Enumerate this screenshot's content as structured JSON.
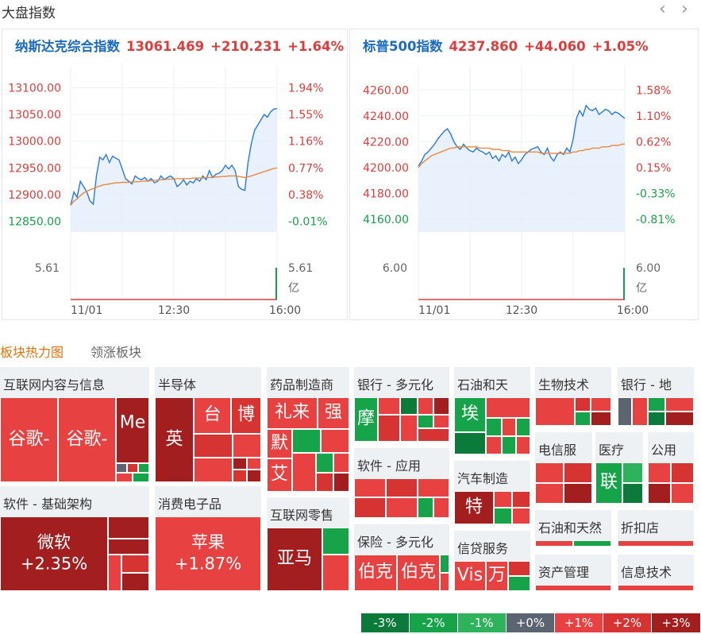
{
  "header": {
    "title": "大盘指数",
    "prev_icon": "chevron-left-icon",
    "next_icon": "chevron-right-icon"
  },
  "nasdaq": {
    "name": "纳斯达克综合指数",
    "price": "13061.469",
    "change": "+210.231",
    "pct": "+1.64%",
    "left_ticks": [
      "13100.00",
      "13050.00",
      "13000.00",
      "12950.00",
      "12900.00",
      "12850.00"
    ],
    "right_ticks": [
      "1.94%",
      "1.55%",
      "1.16%",
      "0.77%",
      "0.38%",
      "-0.01%"
    ],
    "vol_left": "5.61",
    "vol_right": "5.61",
    "vol_unit": "亿",
    "x_ticks": [
      "11/01",
      "12:30",
      "16:00"
    ]
  },
  "sp500": {
    "name": "标普500指数",
    "price": "4237.860",
    "change": "+44.060",
    "pct": "+1.05%",
    "left_ticks": [
      "4260.00",
      "4240.00",
      "4220.00",
      "4200.00",
      "4180.00",
      "4160.00"
    ],
    "right_ticks": [
      "1.58%",
      "1.10%",
      "0.62%",
      "0.15%",
      "-0.33%",
      "-0.81%"
    ],
    "vol_left": "6.00",
    "vol_right": "6.00",
    "vol_unit": "亿",
    "x_ticks": [
      "11/01",
      "12:30",
      "16:00"
    ]
  },
  "chart_data": [
    {
      "type": "line",
      "ylim": [
        12830,
        13120
      ],
      "series": [
        {
          "values": [
            12880,
            12905,
            12895,
            12925,
            12915,
            12905,
            12888,
            12882,
            12935,
            12970,
            12965,
            12975,
            12960,
            12972,
            12968,
            12965,
            12948,
            12930,
            12925,
            12920,
            12935,
            12930,
            12928,
            12932,
            12925,
            12930,
            12922,
            12925,
            12935,
            12928,
            12932,
            12935,
            12930,
            12915,
            12920,
            12928,
            12918,
            12925,
            12922,
            12930,
            12925,
            12935,
            12928,
            12945,
            12932,
            12938,
            12940,
            12945,
            12955,
            12948,
            12955,
            12945,
            12915,
            12910,
            12908,
            12960,
            12995,
            13020,
            13030,
            13040,
            13050,
            13045,
            13055,
            13060,
            13061
          ]
        },
        {
          "values": [
            12880,
            12888,
            12892,
            12898,
            12903,
            12906,
            12909,
            12911,
            12914,
            12916,
            12918,
            12919,
            12920,
            12921,
            12922,
            12922,
            12923,
            12923,
            12923,
            12924,
            12924,
            12924,
            12925,
            12925,
            12926,
            12926,
            12927,
            12927,
            12928,
            12928,
            12929,
            12929,
            12929,
            12930,
            12930,
            12930,
            12930,
            12930,
            12931,
            12931,
            12931,
            12931,
            12932,
            12932,
            12932,
            12933,
            12933,
            12934,
            12934,
            12935,
            12935,
            12935,
            12934,
            12933,
            12932,
            12933,
            12935,
            12937,
            12939,
            12941,
            12943,
            12945,
            12947,
            12949,
            12950
          ]
        }
      ]
    },
    {
      "type": "line",
      "ylim": [
        4150,
        4270
      ],
      "series": [
        {
          "values": [
            4201,
            4205,
            4210,
            4212,
            4215,
            4218,
            4222,
            4225,
            4228,
            4230,
            4226,
            4220,
            4216,
            4214,
            4218,
            4215,
            4213,
            4212,
            4215,
            4213,
            4212,
            4210,
            4212,
            4207,
            4209,
            4205,
            4210,
            4208,
            4212,
            4205,
            4208,
            4203,
            4206,
            4210,
            4212,
            4214,
            4215,
            4216,
            4212,
            4210,
            4215,
            4208,
            4205,
            4210,
            4212,
            4210,
            4215,
            4212,
            4222,
            4238,
            4244,
            4240,
            4248,
            4245,
            4244,
            4246,
            4241,
            4243,
            4245,
            4244,
            4241,
            4243,
            4242,
            4240,
            4238
          ]
        },
        {
          "values": [
            4200,
            4203,
            4205,
            4207,
            4209,
            4210,
            4211,
            4212,
            4213,
            4214,
            4215,
            4215,
            4216,
            4216,
            4216,
            4216,
            4216,
            4216,
            4216,
            4215,
            4215,
            4215,
            4215,
            4214,
            4214,
            4214,
            4213,
            4213,
            4213,
            4212,
            4212,
            4212,
            4212,
            4212,
            4212,
            4212,
            4212,
            4212,
            4211,
            4211,
            4211,
            4211,
            4211,
            4211,
            4211,
            4211,
            4211,
            4211,
            4212,
            4212,
            4213,
            4213,
            4214,
            4214,
            4215,
            4215,
            4215,
            4216,
            4216,
            4216,
            4217,
            4217,
            4217,
            4218,
            4218
          ]
        }
      ]
    }
  ],
  "tabs": {
    "heatmap": "板块热力图",
    "leaders": "领涨板块"
  },
  "sectors": {
    "internet_content": "互联网内容与信息",
    "semiconductor": "半导体",
    "pharma": "药品制造商",
    "bank_diversified": "银行 - 多元化",
    "oil_gas": "石油和天",
    "biotech": "生物技术",
    "bank_regional": "银行 - 地",
    "software_app": "软件 - 应用",
    "telecom": "电信服",
    "healthcare": "医疗",
    "utilities": "公用",
    "software_infra": "软件 - 基础架构",
    "consumer_elec": "消费电子品",
    "internet_retail": "互联网零售",
    "auto": "汽车制造",
    "insurance": "保险 - 多元化",
    "credit": "信贷服务",
    "oil_gas2": "石油和天然",
    "discount": "折扣店",
    "asset_mgmt": "资产管理",
    "info_tech": "信息技术"
  },
  "tiles": {
    "google1": "谷歌-",
    "google2": "谷歌-",
    "meta": "Me",
    "nvda": "英",
    "tsmc": "台",
    "broadcom": "博",
    "lilly": "礼来",
    "jnj": "强",
    "merck": "默",
    "abbvie": "艾",
    "jpm": "摩",
    "exxon": "埃",
    "msft_name": "微软",
    "msft_pct": "+2.35%",
    "aapl_name": "苹果",
    "aapl_pct": "+1.87%",
    "amzn": "亚马",
    "tsla": "特",
    "brk1": "伯克",
    "brk2": "伯克",
    "visa": "Vis",
    "mastercard": "万",
    "lly_util": "联"
  },
  "legend": [
    "-3%",
    "-2%",
    "-1%",
    "+0%",
    "+1%",
    "+2%",
    "+3%"
  ],
  "colors": {
    "dark_red": "#a31f1f",
    "red": "#e84141",
    "mid_red": "#d63333",
    "dark_green": "#0c7a3a",
    "green": "#16a34a",
    "light_green": "#2eb35c",
    "gray": "#5b6470",
    "up": "#e03c3c",
    "down": "#19a049",
    "name_blue": "#1d6bbf"
  }
}
